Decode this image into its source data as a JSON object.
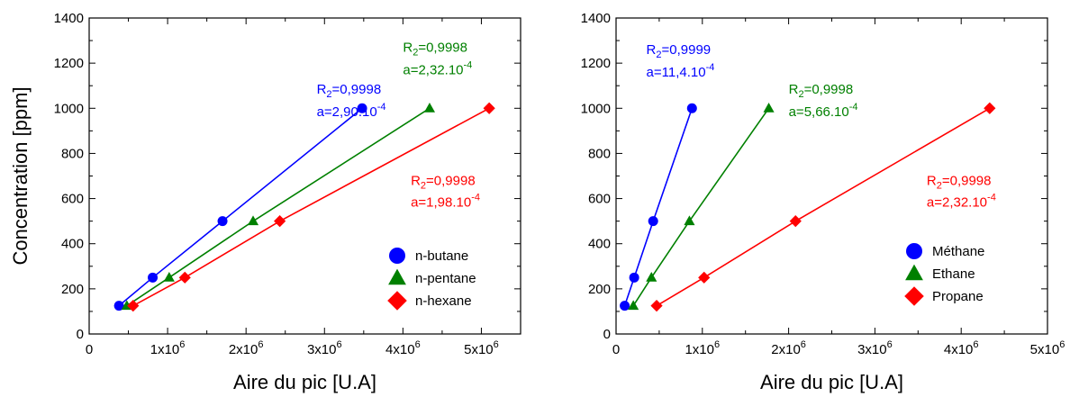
{
  "chart_data": [
    {
      "type": "scatter",
      "xlabel": "Aire du pic [U.A]",
      "ylabel": "Concentration [ppm]",
      "xlim": [
        0,
        5500000
      ],
      "ylim": [
        0,
        1400
      ],
      "x_ticks": [
        0,
        1000000,
        2000000,
        3000000,
        4000000,
        5000000
      ],
      "x_tick_labels": [
        "0",
        "1x10",
        "2x10",
        "3x10",
        "4x10",
        "5x10"
      ],
      "x_tick_exponent": "6",
      "y_ticks": [
        0,
        200,
        400,
        600,
        800,
        1000,
        1200,
        1400
      ],
      "y_tick_labels": [
        "0",
        "200",
        "400",
        "600",
        "800",
        "1000",
        "1200",
        "1400"
      ],
      "legend_position": "bottom-right",
      "series": [
        {
          "name": "n-butane",
          "marker": "circle",
          "color": "#0000ff",
          "x": [
            380000,
            810000,
            1700000,
            3480000
          ],
          "y": [
            125,
            250,
            500,
            1000
          ]
        },
        {
          "name": "n-pentane",
          "marker": "triangle",
          "color": "#008000",
          "x": [
            480000,
            1020000,
            2090000,
            4340000
          ],
          "y": [
            125,
            250,
            500,
            1000
          ]
        },
        {
          "name": "n-hexane",
          "marker": "diamond",
          "color": "#ff0000",
          "x": [
            560000,
            1220000,
            2430000,
            5100000
          ],
          "y": [
            125,
            250,
            500,
            1000
          ]
        }
      ],
      "annotations": [
        {
          "series": "n-butane",
          "color": "#0000ff",
          "r2_prefix": "R",
          "r2_sub": "2",
          "r2_value": "=0,9998",
          "a_text": "a=2,90.10",
          "a_exp": "-4",
          "x": 2900000,
          "y_r": 1065,
          "y_a": 965
        },
        {
          "series": "n-pentane",
          "color": "#008000",
          "r2_prefix": "R",
          "r2_sub": "2",
          "r2_value": "=0,9998",
          "a_text": "a=2,32.10",
          "a_exp": "-4",
          "x": 4000000,
          "y_r": 1250,
          "y_a": 1150
        },
        {
          "series": "n-hexane",
          "color": "#ff0000",
          "r2_prefix": "R",
          "r2_sub": "2",
          "r2_value": "=0,9998",
          "a_text": "a=1,98.10",
          "a_exp": "-4",
          "x": 4100000,
          "y_r": 660,
          "y_a": 565
        }
      ]
    },
    {
      "type": "scatter",
      "xlabel": "Aire du pic [U.A]",
      "ylabel": "",
      "xlim": [
        0,
        5000000
      ],
      "ylim": [
        0,
        1400
      ],
      "x_ticks": [
        0,
        1000000,
        2000000,
        3000000,
        4000000,
        5000000
      ],
      "x_tick_labels": [
        "0",
        "1x10",
        "2x10",
        "3x10",
        "4x10",
        "5x10"
      ],
      "x_tick_exponent": "6",
      "y_ticks": [
        0,
        200,
        400,
        600,
        800,
        1000,
        1200,
        1400
      ],
      "y_tick_labels": [
        "0",
        "200",
        "400",
        "600",
        "800",
        "1000",
        "1200",
        "1400"
      ],
      "legend_position": "bottom-right",
      "series": [
        {
          "name": "Méthane",
          "marker": "circle",
          "color": "#0000ff",
          "x": [
            100000,
            210000,
            430000,
            880000
          ],
          "y": [
            125,
            250,
            500,
            1000
          ]
        },
        {
          "name": "Ethane",
          "marker": "triangle",
          "color": "#008000",
          "x": [
            200000,
            410000,
            850000,
            1770000
          ],
          "y": [
            125,
            250,
            500,
            1000
          ]
        },
        {
          "name": "Propane",
          "marker": "diamond",
          "color": "#ff0000",
          "x": [
            470000,
            1020000,
            2080000,
            4330000
          ],
          "y": [
            125,
            250,
            500,
            1000
          ]
        }
      ],
      "annotations": [
        {
          "series": "Méthane",
          "color": "#0000ff",
          "r2_prefix": "R",
          "r2_sub": "2",
          "r2_value": "=0,9999",
          "a_text": "a=11,4.10",
          "a_exp": "-4",
          "x": 350000,
          "y_r": 1240,
          "y_a": 1140
        },
        {
          "series": "Ethane",
          "color": "#008000",
          "r2_prefix": "R",
          "r2_sub": "2",
          "r2_value": "=0,9998",
          "a_text": "a=5,66.10",
          "a_exp": "-4",
          "x": 2000000,
          "y_r": 1065,
          "y_a": 965
        },
        {
          "series": "Propane",
          "color": "#ff0000",
          "r2_prefix": "R",
          "r2_sub": "2",
          "r2_value": "=0,9998",
          "a_text": "a=2,32.10",
          "a_exp": "-4",
          "x": 3600000,
          "y_r": 660,
          "y_a": 565
        }
      ]
    }
  ]
}
